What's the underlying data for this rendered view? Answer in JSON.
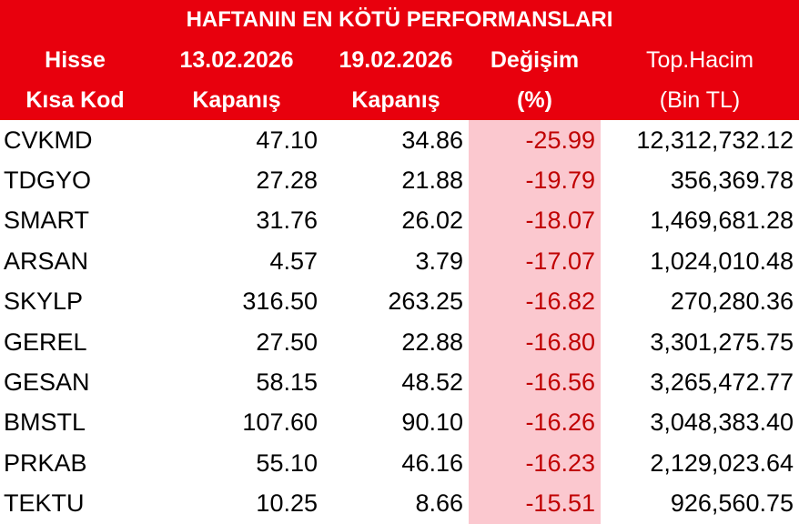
{
  "header": {
    "title": "HAFTANIN EN KÖTÜ PERFORMANSLARI",
    "columns": [
      [
        "Hisse",
        "Kısa Kod"
      ],
      [
        "13.02.2026",
        "Kapanış"
      ],
      [
        "19.02.2026",
        "Kapanış"
      ],
      [
        "Değişim",
        "(%)"
      ],
      [
        "Top.Hacim",
        "(Bin TL)"
      ]
    ]
  },
  "table": {
    "rows": [
      [
        "CVKMD",
        "47.10",
        "34.86",
        "-25.99",
        "12,312,732.12"
      ],
      [
        "TDGYO",
        "27.28",
        "21.88",
        "-19.79",
        "356,369.78"
      ],
      [
        "SMART",
        "31.76",
        "26.02",
        "-18.07",
        "1,469,681.28"
      ],
      [
        "ARSAN",
        "4.57",
        "3.79",
        "-17.07",
        "1,024,010.48"
      ],
      [
        "SKYLP",
        "316.50",
        "263.25",
        "-16.82",
        "270,280.36"
      ],
      [
        "GEREL",
        "27.50",
        "22.88",
        "-16.80",
        "3,301,275.75"
      ],
      [
        "GESAN",
        "58.15",
        "48.52",
        "-16.56",
        "3,265,472.77"
      ],
      [
        "BMSTL",
        "107.60",
        "90.10",
        "-16.26",
        "3,048,383.40"
      ],
      [
        "PRKAB",
        "55.10",
        "46.16",
        "-16.23",
        "2,129,023.64"
      ],
      [
        "TEKTU",
        "10.25",
        "8.66",
        "-15.51",
        "926,560.75"
      ]
    ]
  }
}
